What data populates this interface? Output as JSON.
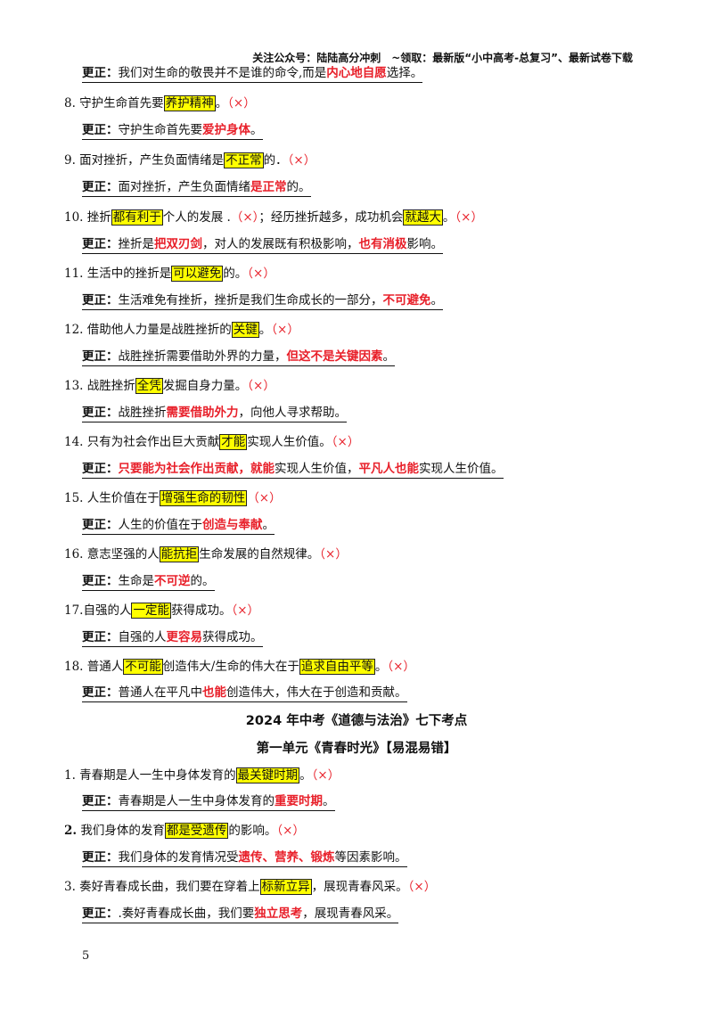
{
  "header": "关注公众号：陆陆高分冲刺　~领取：最新版“小中高考-总复习”、最新试卷下载",
  "label": "更正：",
  "wrong": "（×）",
  "c7": {
    "a": "我们对生命的敬畏并不是谁的命令,而是",
    "r": "内心地自愿",
    "b": "选择。"
  },
  "q8": {
    "a": "8.  守护生命首先要",
    "h": "养护精神",
    "b": "。"
  },
  "c8": {
    "a": "守护生命首先要",
    "r": "爱护身体",
    "b": "。"
  },
  "q9": {
    "a": "9.  面对挫折，产生负面情绪是",
    "h": "不正常",
    "b": "的．"
  },
  "c9": {
    "a": "面对挫折，产生负面情绪",
    "r": "是正常",
    "b": "的。"
  },
  "q10": {
    "a": "10.  挫折",
    "h1": "都有利于",
    "b": "个人的发展 .",
    "m": "；经历挫折越多，成功机会",
    "h2": "就越大",
    "c": "。"
  },
  "c10": {
    "a": "挫折是",
    "r1": "把双刃剑",
    "b": "，对人的发展既有积极影响，",
    "r2": "也有消极",
    "c": "影响。"
  },
  "q11": {
    "a": "11.  生活中的挫折是",
    "h": "可以避免",
    "b": "的。"
  },
  "c11": {
    "a": "生活难免有挫折，挫折是我们生命成长的一部分，",
    "r": "不可避免",
    "b": "。"
  },
  "q12": {
    "a": "12.  借助他人力量是战胜挫折的",
    "h": "关键",
    "b": "。"
  },
  "c12": {
    "a": "战胜挫折需要借助外界的力量，",
    "r": "但这不是关键因素",
    "b": "。"
  },
  "q13": {
    "a": "13.  战胜挫折",
    "h": "全凭",
    "b": "发掘自身力量。"
  },
  "c13": {
    "a": "战胜挫折",
    "r": "需要借助外力",
    "b": "，向他人寻求帮助。"
  },
  "q14": {
    "a": "14.  只有为社会作出巨大贡献",
    "h": "才能",
    "b": "实现人生价值。"
  },
  "c14": {
    "r1": "只要能为社会作出贡献，就能",
    "a": "实现人生价值，",
    "r2": "平凡人也能",
    "b": "实现人生价值。"
  },
  "q15": {
    "a": "15.  人生价值在于",
    "h": "增强生命的韧性",
    "b": ""
  },
  "c15": {
    "a": "人生的价值在于",
    "r": "创造与奉献",
    "b": "。"
  },
  "q16": {
    "a": "16.  意志坚强的人",
    "h": "能抗拒",
    "b": "生命发展的自然规律。"
  },
  "c16": {
    "a": "生命是",
    "r": "不可逆",
    "b": "的。"
  },
  "q17": {
    "a": "17.自强的人",
    "h": "一定能",
    "b": "获得成功。"
  },
  "c17": {
    "a": "自强的人",
    "r": "更容易",
    "b": "获得成功。"
  },
  "q18": {
    "a": "18.  普通人",
    "h1": "不可能",
    "b": "创造伟大/生命的伟大在于",
    "h2": "追求自由平等",
    "c": "。"
  },
  "c18": {
    "a": "普通人在平凡中",
    "r": "也能",
    "b": "创造伟大，伟大在于创造和贡献。"
  },
  "title1": "2024 年中考《道德与法治》七下考点",
  "title2": "第一单元《青春时光》【易混易错】",
  "p1": {
    "a": "1.  青春期是人一生中身体发育的",
    "h": "最关键时期",
    "b": "。"
  },
  "pc1": {
    "a": "青春期是人一生中身体发育的",
    "r": "重要时期",
    "b": "。"
  },
  "p2": {
    "a": "2.",
    "a2": " 我们身体的发育",
    "h": "都是受遗传",
    "b": "的影响。"
  },
  "pc2": {
    "a": "我们身体的发育情况受",
    "r": "遗传、营养、锻炼",
    "b": "等因素影响。"
  },
  "p3": {
    "a": "3.  奏好青春成长曲，我们要在穿着上",
    "h": "标新立异",
    "b": "，展现青春风采。"
  },
  "pc3": {
    "a": ".奏好青春成长曲，我们要",
    "r": "独立思考",
    "b": "，展现青春风采。"
  },
  "page_number": "5"
}
